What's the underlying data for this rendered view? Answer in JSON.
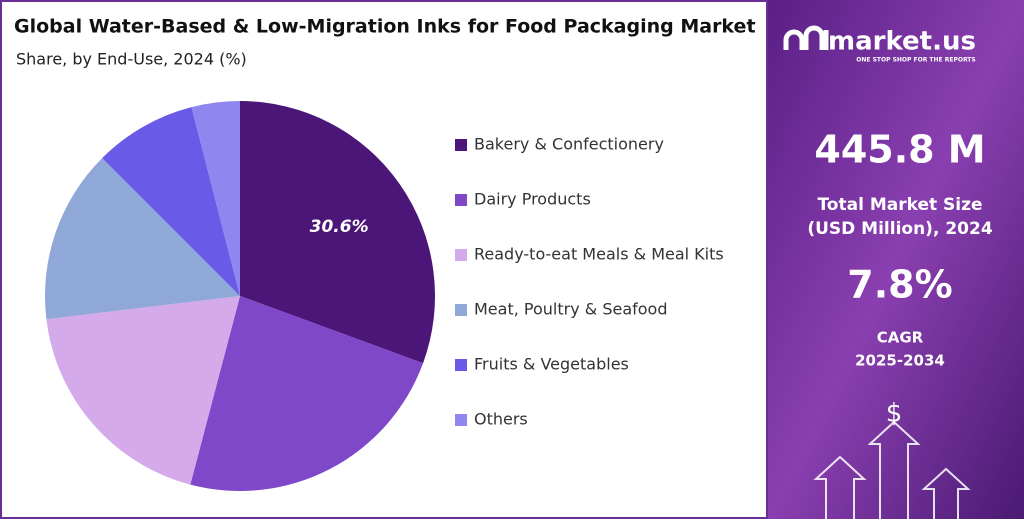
{
  "chart_data": {
    "type": "pie",
    "title": "Global Water-Based & Low-Migration Inks for Food Packaging Market",
    "subtitle": "Share, by End-Use, 2024 (%)",
    "categories": [
      "Bakery & Confectionery",
      "Dairy Products",
      "Ready-to-eat Meals & Meal Kits",
      "Meat, Poultry & Seafood",
      "Fruits & Vegetables",
      "Others"
    ],
    "values": [
      30.6,
      23.5,
      19.0,
      14.4,
      8.5,
      4.0
    ],
    "value_labels": [
      "30.6%",
      null,
      null,
      null,
      null,
      null
    ],
    "colors": [
      "#4b1678",
      "#7f48c9",
      "#d4aaeb",
      "#8fa8d8",
      "#6a5ae8",
      "#8f86f0"
    ]
  },
  "panel": {
    "brand": "market.us",
    "tagline": "ONE STOP SHOP FOR THE REPORTS",
    "market_size": "445.8 M",
    "market_size_label": [
      "Total Market Size",
      "(USD Million), 2024"
    ],
    "cagr": "7.8%",
    "cagr_label": [
      "CAGR",
      "2025-2034"
    ]
  }
}
